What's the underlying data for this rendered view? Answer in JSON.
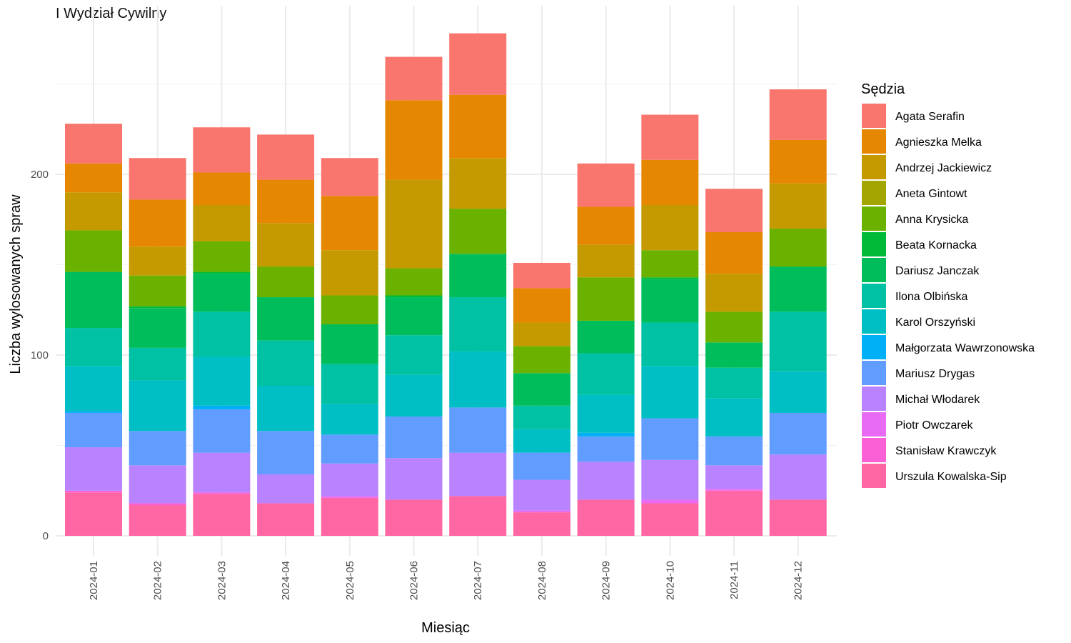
{
  "chart_data": {
    "type": "bar",
    "stacked": true,
    "title": "I Wydział Cywilny",
    "xlabel": "Miesiąc",
    "ylabel": "Liczba wylosowanych spraw",
    "ylim": [
      0,
      290
    ],
    "y_ticks": [
      0,
      100,
      200
    ],
    "grid": true,
    "legend_title": "Sędzia",
    "legend_position": "right",
    "categories": [
      "2024-01",
      "2024-02",
      "2024-03",
      "2024-04",
      "2024-05",
      "2024-06",
      "2024-07",
      "2024-08",
      "2024-09",
      "2024-10",
      "2024-11",
      "2024-12"
    ],
    "series": [
      {
        "name": "Urszula Kowalska-Sip",
        "color": "#FF67A4",
        "values": [
          24,
          17,
          23,
          18,
          21,
          20,
          22,
          13,
          20,
          18,
          25,
          20
        ]
      },
      {
        "name": "Stanisław Krawczyk",
        "color": "#FB61D7",
        "values": [
          1,
          1,
          1,
          0,
          0,
          0,
          0,
          0,
          0,
          0,
          0,
          0
        ]
      },
      {
        "name": "Piotr Owczarek",
        "color": "#E76BF3",
        "values": [
          0,
          0,
          0,
          0,
          1,
          0,
          0,
          1,
          0,
          2,
          1,
          0
        ]
      },
      {
        "name": "Michał Włodarek",
        "color": "#B983FF",
        "values": [
          24,
          21,
          22,
          16,
          18,
          23,
          24,
          17,
          21,
          22,
          13,
          25
        ]
      },
      {
        "name": "Mariusz Drygas",
        "color": "#619CFF",
        "values": [
          19,
          19,
          24,
          24,
          16,
          23,
          25,
          15,
          14,
          23,
          16,
          23
        ]
      },
      {
        "name": "Małgorzata Wawrzonowska",
        "color": "#00B0F6",
        "values": [
          1,
          0,
          2,
          0,
          0,
          0,
          0,
          0,
          2,
          0,
          0,
          0
        ]
      },
      {
        "name": "Karol Orszyński",
        "color": "#00BFC4",
        "values": [
          25,
          28,
          27,
          25,
          17,
          23,
          31,
          13,
          21,
          29,
          21,
          23
        ]
      },
      {
        "name": "Ilona Olbińska",
        "color": "#00C1A3",
        "values": [
          21,
          18,
          25,
          25,
          22,
          22,
          30,
          13,
          23,
          24,
          17,
          33
        ]
      },
      {
        "name": "Dariusz Janczak",
        "color": "#00BD5C",
        "values": [
          31,
          22,
          21,
          24,
          22,
          21,
          24,
          18,
          18,
          24,
          14,
          25
        ]
      },
      {
        "name": "Beata Kornacka",
        "color": "#00BA38",
        "values": [
          0,
          1,
          1,
          0,
          0,
          1,
          0,
          0,
          0,
          1,
          0,
          0
        ]
      },
      {
        "name": "Anna Krysicka",
        "color": "#6BB100",
        "values": [
          23,
          17,
          17,
          17,
          16,
          15,
          25,
          15,
          24,
          15,
          17,
          21
        ]
      },
      {
        "name": "Aneta Gintowt",
        "color": "#A3A500",
        "values": [
          0,
          0,
          0,
          0,
          0,
          0,
          0,
          0,
          0,
          0,
          0,
          0
        ]
      },
      {
        "name": "Andrzej Jackiewicz",
        "color": "#C49A00",
        "values": [
          21,
          16,
          20,
          24,
          25,
          49,
          28,
          13,
          18,
          25,
          21,
          25
        ]
      },
      {
        "name": "Agnieszka Melka",
        "color": "#E58700",
        "values": [
          16,
          26,
          18,
          24,
          30,
          44,
          35,
          19,
          21,
          25,
          23,
          24
        ]
      },
      {
        "name": "Agata Serafin",
        "color": "#F8766D",
        "values": [
          22,
          23,
          25,
          25,
          21,
          24,
          34,
          14,
          24,
          25,
          24,
          28
        ]
      }
    ]
  },
  "legend_order": [
    "Agata Serafin",
    "Agnieszka Melka",
    "Andrzej Jackiewicz",
    "Aneta Gintowt",
    "Anna Krysicka",
    "Beata Kornacka",
    "Dariusz Janczak",
    "Ilona Olbińska",
    "Karol Orszyński",
    "Małgorzata Wawrzonowska",
    "Mariusz Drygas",
    "Michał Włodarek",
    "Piotr Owczarek",
    "Stanisław Krawczyk",
    "Urszula Kowalska-Sip"
  ]
}
